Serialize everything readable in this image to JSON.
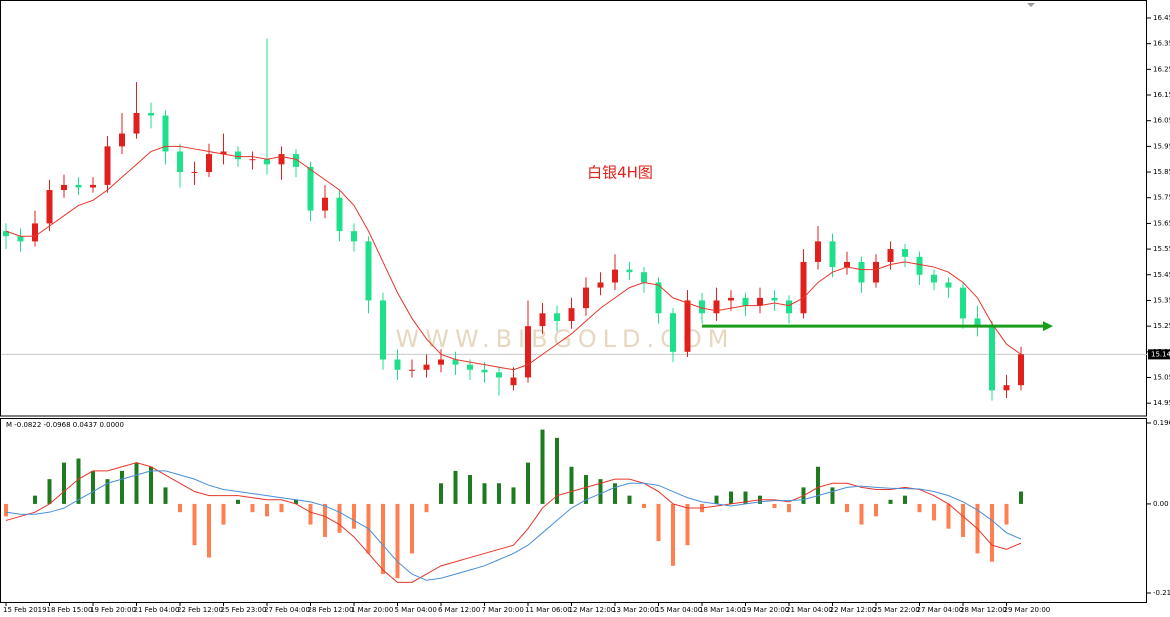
{
  "chart_data": {
    "type": "candlestick",
    "title": "白银4H图",
    "watermark": "WWW.BIBGOLD.COM",
    "categories": [
      "15 Feb 2019",
      null,
      null,
      "18 Feb 15:00",
      null,
      null,
      "19 Feb 20:00",
      null,
      null,
      "21 Feb 04:00",
      null,
      null,
      "22 Feb 12:00",
      null,
      null,
      "25 Feb 23:00",
      null,
      null,
      "27 Feb 04:00",
      null,
      null,
      "28 Feb 12:00",
      null,
      null,
      "1 Mar 20:00",
      null,
      null,
      "5 Mar 04:00",
      null,
      null,
      "6 Mar 12:00",
      null,
      null,
      "7 Mar 20:00",
      null,
      null,
      "11 Mar 06:00",
      null,
      null,
      "12 Mar 12:00",
      null,
      null,
      "13 Mar 20:00",
      null,
      null,
      "15 Mar 04:00",
      null,
      null,
      "18 Mar 14:00",
      null,
      null,
      "19 Mar 20:00",
      null,
      null,
      "21 Mar 04:00",
      null,
      null,
      "22 Mar 12:00",
      null,
      null,
      "25 Mar 22:00",
      null,
      null,
      "27 Mar 04:00",
      null,
      null,
      "28 Mar 12:00",
      null,
      null,
      "29 Mar 20:00",
      null
    ],
    "open": [
      15.62,
      15.6,
      15.58,
      15.65,
      15.78,
      15.8,
      15.79,
      15.8,
      15.95,
      16.0,
      16.08,
      16.07,
      15.93,
      15.85,
      15.85,
      15.92,
      15.93,
      15.9,
      15.9,
      15.88,
      15.92,
      15.87,
      15.7,
      15.75,
      15.62,
      15.58,
      15.35,
      15.12,
      15.08,
      15.08,
      15.1,
      15.12,
      15.1,
      15.08,
      15.07,
      15.02,
      15.05,
      15.25,
      15.3,
      15.27,
      15.32,
      15.4,
      15.42,
      15.47,
      15.46,
      15.42,
      15.3,
      15.15,
      15.35,
      15.3,
      15.35,
      15.36,
      15.33,
      15.36,
      15.35,
      15.3,
      15.5,
      15.58,
      15.48,
      15.5,
      15.42,
      15.5,
      15.55,
      15.52,
      15.45,
      15.42,
      15.4,
      15.28,
      15.25,
      15.0,
      15.02
    ],
    "high": [
      15.65,
      15.63,
      15.7,
      15.82,
      15.84,
      15.83,
      15.83,
      15.99,
      16.08,
      16.2,
      16.12,
      16.09,
      15.96,
      15.89,
      15.96,
      16.0,
      15.95,
      15.93,
      16.37,
      15.95,
      15.94,
      15.89,
      15.8,
      15.78,
      15.65,
      15.6,
      15.38,
      15.16,
      15.12,
      15.14,
      15.16,
      15.15,
      15.12,
      15.11,
      15.09,
      15.09,
      15.35,
      15.34,
      15.33,
      15.36,
      15.44,
      15.46,
      15.53,
      15.5,
      15.48,
      15.44,
      15.32,
      15.39,
      15.38,
      15.4,
      15.39,
      15.38,
      15.4,
      15.39,
      15.37,
      15.55,
      15.64,
      15.61,
      15.54,
      15.52,
      15.53,
      15.58,
      15.57,
      15.54,
      15.47,
      15.44,
      15.42,
      15.33,
      15.27,
      15.06,
      15.17
    ],
    "low": [
      15.55,
      15.54,
      15.56,
      15.62,
      15.75,
      15.76,
      15.77,
      15.77,
      15.92,
      15.98,
      16.02,
      15.88,
      15.79,
      15.8,
      15.83,
      15.88,
      15.87,
      15.86,
      15.84,
      15.82,
      15.83,
      15.66,
      15.67,
      15.58,
      15.54,
      15.3,
      15.08,
      15.04,
      15.05,
      15.05,
      15.07,
      15.06,
      15.04,
      15.03,
      14.98,
      15.0,
      15.03,
      15.22,
      15.23,
      15.24,
      15.29,
      15.37,
      15.39,
      15.43,
      15.38,
      15.26,
      15.11,
      15.13,
      15.26,
      15.27,
      15.31,
      15.29,
      15.3,
      15.31,
      15.26,
      15.28,
      15.47,
      15.44,
      15.45,
      15.38,
      15.4,
      15.47,
      15.48,
      15.41,
      15.39,
      15.36,
      15.24,
      15.21,
      14.96,
      14.97,
      15.0
    ],
    "close": [
      15.6,
      15.58,
      15.65,
      15.78,
      15.8,
      15.79,
      15.8,
      15.95,
      16.0,
      16.08,
      16.07,
      15.93,
      15.85,
      15.85,
      15.92,
      15.93,
      15.9,
      15.9,
      15.88,
      15.92,
      15.87,
      15.7,
      15.75,
      15.62,
      15.58,
      15.35,
      15.12,
      15.08,
      15.08,
      15.1,
      15.12,
      15.1,
      15.08,
      15.07,
      15.05,
      15.05,
      15.25,
      15.3,
      15.27,
      15.32,
      15.4,
      15.42,
      15.47,
      15.46,
      15.42,
      15.3,
      15.15,
      15.35,
      15.3,
      15.35,
      15.36,
      15.33,
      15.36,
      15.35,
      15.3,
      15.5,
      15.58,
      15.48,
      15.5,
      15.42,
      15.5,
      15.55,
      15.52,
      15.45,
      15.42,
      15.4,
      15.28,
      15.25,
      15.0,
      15.02,
      15.14
    ],
    "up_color": "#e0201c",
    "down_color": "#1fe08a",
    "ma": {
      "color": "#e8342a",
      "values": [
        15.62,
        15.6,
        15.6,
        15.64,
        15.68,
        15.72,
        15.74,
        15.78,
        15.83,
        15.88,
        15.93,
        15.95,
        15.95,
        15.94,
        15.93,
        15.92,
        15.91,
        15.91,
        15.9,
        15.91,
        15.9,
        15.86,
        15.82,
        15.78,
        15.72,
        15.62,
        15.5,
        15.38,
        15.28,
        15.2,
        15.14,
        15.12,
        15.11,
        15.1,
        15.09,
        15.08,
        15.1,
        15.14,
        15.18,
        15.22,
        15.27,
        15.32,
        15.36,
        15.4,
        15.42,
        15.41,
        15.36,
        15.34,
        15.32,
        15.31,
        15.32,
        15.33,
        15.33,
        15.34,
        15.33,
        15.36,
        15.42,
        15.46,
        15.48,
        15.47,
        15.47,
        15.49,
        15.5,
        15.49,
        15.48,
        15.46,
        15.42,
        15.36,
        15.26,
        15.18,
        15.14
      ]
    },
    "ylim": [
      14.9,
      16.52
    ],
    "yticks": [
      14.95,
      15.05,
      15.15,
      15.25,
      15.35,
      15.45,
      15.55,
      15.65,
      15.75,
      15.85,
      15.95,
      16.05,
      16.15,
      16.25,
      16.35,
      16.45
    ],
    "current_price": 15.14,
    "arrow": {
      "value": 15.25,
      "color": "#1a9e1a"
    },
    "macd": {
      "label": "M -0.0822 -0.0968 0.0437 0.0000",
      "ylim": [
        -0.2158,
        0.196
      ],
      "yticks": [
        -0.2158,
        {
          "value": 0,
          "label": "0.00"
        },
        0.196
      ],
      "histogram": {
        "pos_color": "#1e7a1e",
        "neg_color": "#ff7f50",
        "values": [
          -0.03,
          0.0,
          0.02,
          0.06,
          0.1,
          0.11,
          0.08,
          0.06,
          0.08,
          0.1,
          0.09,
          0.04,
          -0.02,
          -0.1,
          -0.13,
          -0.05,
          0.01,
          -0.02,
          -0.03,
          -0.02,
          0.01,
          -0.05,
          -0.08,
          -0.07,
          -0.06,
          -0.12,
          -0.17,
          -0.18,
          -0.12,
          -0.02,
          0.05,
          0.08,
          0.07,
          0.05,
          0.05,
          0.04,
          0.1,
          0.18,
          0.16,
          0.09,
          0.07,
          0.06,
          0.05,
          0.02,
          -0.01,
          -0.09,
          -0.15,
          -0.1,
          -0.02,
          0.02,
          0.03,
          0.03,
          0.02,
          -0.01,
          -0.02,
          0.04,
          0.09,
          0.04,
          -0.02,
          -0.05,
          -0.03,
          0.01,
          0.02,
          -0.02,
          -0.04,
          -0.06,
          -0.08,
          -0.12,
          -0.14,
          -0.05,
          0.03
        ]
      },
      "series": [
        {
          "color": "#e8342a",
          "values": [
            -0.04,
            -0.03,
            -0.02,
            0.0,
            0.03,
            0.06,
            0.08,
            0.08,
            0.09,
            0.1,
            0.09,
            0.07,
            0.05,
            0.03,
            0.02,
            0.02,
            0.02,
            0.015,
            0.01,
            0.01,
            0.0,
            -0.02,
            -0.03,
            -0.05,
            -0.08,
            -0.12,
            -0.16,
            -0.19,
            -0.19,
            -0.17,
            -0.15,
            -0.14,
            -0.13,
            -0.12,
            -0.11,
            -0.1,
            -0.06,
            -0.01,
            0.02,
            0.03,
            0.04,
            0.05,
            0.06,
            0.06,
            0.05,
            0.03,
            0.0,
            -0.01,
            -0.01,
            -0.005,
            0.0,
            0.005,
            0.01,
            0.01,
            0.005,
            0.02,
            0.04,
            0.05,
            0.05,
            0.04,
            0.035,
            0.035,
            0.04,
            0.035,
            0.02,
            0.0,
            -0.03,
            -0.06,
            -0.1,
            -0.11,
            -0.095
          ]
        },
        {
          "color": "#4a8fd8",
          "values": [
            -0.02,
            -0.025,
            -0.025,
            -0.02,
            -0.01,
            0.01,
            0.03,
            0.05,
            0.06,
            0.07,
            0.08,
            0.08,
            0.07,
            0.06,
            0.045,
            0.035,
            0.03,
            0.025,
            0.02,
            0.015,
            0.01,
            0.005,
            -0.005,
            -0.02,
            -0.04,
            -0.06,
            -0.1,
            -0.14,
            -0.17,
            -0.185,
            -0.18,
            -0.17,
            -0.16,
            -0.15,
            -0.135,
            -0.12,
            -0.1,
            -0.07,
            -0.04,
            -0.01,
            0.01,
            0.025,
            0.04,
            0.05,
            0.05,
            0.045,
            0.03,
            0.015,
            0.005,
            0.0,
            -0.005,
            0.0,
            0.005,
            0.008,
            0.008,
            0.01,
            0.02,
            0.03,
            0.04,
            0.043,
            0.04,
            0.038,
            0.037,
            0.036,
            0.03,
            0.02,
            0.005,
            -0.015,
            -0.04,
            -0.07,
            -0.085
          ]
        }
      ]
    }
  }
}
